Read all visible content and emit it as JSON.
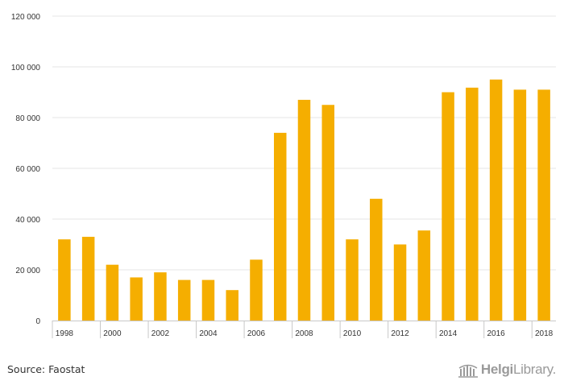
{
  "chart_data": {
    "type": "bar",
    "categories": [
      "1998",
      "1999",
      "2000",
      "2001",
      "2002",
      "2003",
      "2004",
      "2005",
      "2006",
      "2007",
      "2008",
      "2009",
      "2010",
      "2011",
      "2012",
      "2013",
      "2014",
      "2015",
      "2016",
      "2017",
      "2018"
    ],
    "values": [
      32000,
      33000,
      22000,
      17000,
      19000,
      16000,
      16000,
      12000,
      24000,
      74000,
      87000,
      85000,
      32000,
      48000,
      30000,
      35500,
      90000,
      91800,
      95000,
      91000,
      91000
    ],
    "x_tick_labels": [
      "1998",
      "2000",
      "2002",
      "2004",
      "2006",
      "2008",
      "2010",
      "2012",
      "2014",
      "2016",
      "2018"
    ],
    "y_ticks": [
      0,
      20000,
      40000,
      60000,
      80000,
      100000,
      120000
    ],
    "y_tick_labels": [
      "0",
      "20 000",
      "40 000",
      "60 000",
      "80 000",
      "100 000",
      "120 000"
    ],
    "ylim": [
      0,
      120000
    ],
    "title": "",
    "xlabel": "",
    "ylabel": "",
    "grid": true,
    "bar_color": "#f5ae00"
  },
  "footer": {
    "source": "Source: Faostat",
    "logo_text_bold": "Helgi",
    "logo_text_rest": "Library."
  }
}
